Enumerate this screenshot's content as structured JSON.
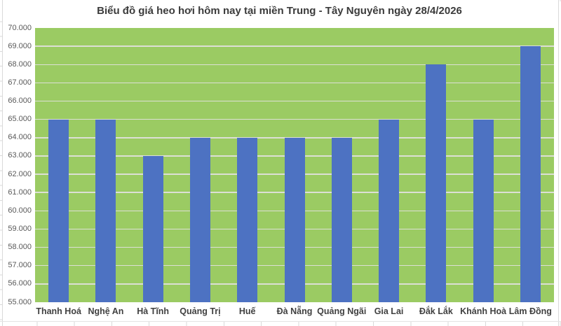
{
  "chart_data": {
    "type": "bar",
    "title": "Biểu đồ giá heo hơi hôm nay tại miền Trung - Tây Nguyên ngày 28/4/2026",
    "categories": [
      "Thanh Hoá",
      "Nghệ An",
      "Hà Tĩnh",
      "Quảng Trị",
      "Huế",
      "Đà Nẵng",
      "Quảng Ngãi",
      "Gia Lai",
      "Đắk Lắk",
      "Khánh Hoà",
      "Lâm Đồng"
    ],
    "values": [
      65000,
      65000,
      63000,
      64000,
      64000,
      64000,
      64000,
      65000,
      68000,
      65000,
      69000
    ],
    "xlabel": "",
    "ylabel": "",
    "ylim": [
      55000,
      70000
    ],
    "ytick_step": 1000,
    "ytick_labels": [
      "55.000",
      "56.000",
      "57.000",
      "58.000",
      "59.000",
      "60.000",
      "61.000",
      "62.000",
      "63.000",
      "64.000",
      "65.000",
      "66.000",
      "67.000",
      "68.000",
      "69.000",
      "70.000"
    ],
    "grid": "horizontal-major",
    "legend": "none",
    "colors": {
      "bar": "#4D72C2",
      "plot_bg": "#9BCB63",
      "gridline": "#DCDFD5",
      "title_text": "#3B3B3B",
      "ytick_text": "#595959",
      "xtick_text": "#404040",
      "sheet_gridline": "#D9D9D9"
    }
  }
}
